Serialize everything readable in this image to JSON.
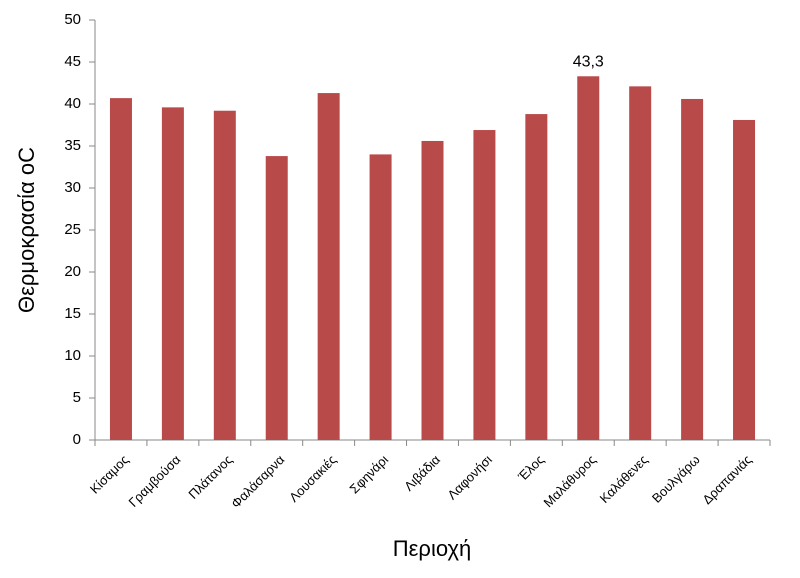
{
  "chart_data": {
    "type": "bar",
    "x_label": "Περιοχή",
    "y_label": "Θερμοκρασία oC",
    "categories": [
      "Κίσαμος",
      "Γραμβούσα",
      "Πλάτανος",
      "Φαλάσαρνα",
      "Λουσακιές",
      "Σφηνάρι",
      "Λιβάδια",
      "Λαφονήσι",
      "Έλος",
      "Μαλάθυρος",
      "Καλάθενες",
      "Βουλγάρω",
      "Δραπανιάς"
    ],
    "values": [
      40.7,
      39.6,
      39.2,
      33.8,
      41.3,
      34.0,
      35.6,
      36.9,
      38.8,
      43.3,
      42.1,
      40.6,
      38.1
    ],
    "value_labels": [
      null,
      null,
      null,
      null,
      null,
      null,
      null,
      null,
      null,
      "43,3",
      null,
      null,
      null
    ],
    "color": "#b84a4a",
    "ylim": [
      0,
      50
    ],
    "yticks": [
      0,
      5,
      10,
      15,
      20,
      25,
      30,
      35,
      40,
      45,
      50
    ],
    "grid": false
  }
}
